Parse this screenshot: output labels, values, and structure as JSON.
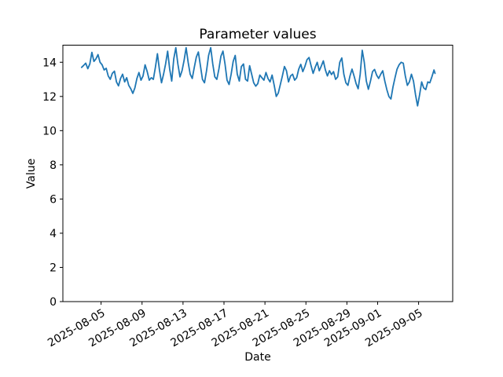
{
  "chart_data": {
    "type": "line",
    "title": "Parameter values",
    "xlabel": "Date",
    "ylabel": "Value",
    "legend": null,
    "grid": false,
    "background": "#ffffff",
    "line_color": "#1f77b4",
    "axis_color": "#000000",
    "x_unit": "days since 2025-08-03 00:00",
    "xlim_days": [
      -1.73,
      36.33
    ],
    "ylim": [
      0,
      15
    ],
    "yticks": [
      {
        "v": 0,
        "label": "0"
      },
      {
        "v": 2,
        "label": "2"
      },
      {
        "v": 4,
        "label": "4"
      },
      {
        "v": 6,
        "label": "6"
      },
      {
        "v": 8,
        "label": "8"
      },
      {
        "v": 10,
        "label": "10"
      },
      {
        "v": 12,
        "label": "12"
      },
      {
        "v": 14,
        "label": "14"
      }
    ],
    "xticks": [
      {
        "t": 2,
        "label": "2025-08-05"
      },
      {
        "t": 6,
        "label": "2025-08-09"
      },
      {
        "t": 10,
        "label": "2025-08-13"
      },
      {
        "t": 14,
        "label": "2025-08-17"
      },
      {
        "t": 18,
        "label": "2025-08-21"
      },
      {
        "t": 22,
        "label": "2025-08-25"
      },
      {
        "t": 26,
        "label": "2025-08-29"
      },
      {
        "t": 29,
        "label": "2025-09-01"
      },
      {
        "t": 33,
        "label": "2025-09-05"
      }
    ],
    "points": [
      [
        0.1,
        13.7
      ],
      [
        0.3,
        13.82
      ],
      [
        0.5,
        13.95
      ],
      [
        0.7,
        13.62
      ],
      [
        0.9,
        13.9
      ],
      [
        1.1,
        14.58
      ],
      [
        1.3,
        14.05
      ],
      [
        1.5,
        14.2
      ],
      [
        1.7,
        14.45
      ],
      [
        1.9,
        14.0
      ],
      [
        2.1,
        13.85
      ],
      [
        2.3,
        13.55
      ],
      [
        2.5,
        13.65
      ],
      [
        2.7,
        13.2
      ],
      [
        2.9,
        13.0
      ],
      [
        3.1,
        13.35
      ],
      [
        3.3,
        13.48
      ],
      [
        3.5,
        12.85
      ],
      [
        3.7,
        12.62
      ],
      [
        3.9,
        13.05
      ],
      [
        4.1,
        13.3
      ],
      [
        4.3,
        12.85
      ],
      [
        4.5,
        13.1
      ],
      [
        4.7,
        12.65
      ],
      [
        4.9,
        12.45
      ],
      [
        5.1,
        12.18
      ],
      [
        5.3,
        12.5
      ],
      [
        5.5,
        13.05
      ],
      [
        5.7,
        13.4
      ],
      [
        5.9,
        12.95
      ],
      [
        6.1,
        13.2
      ],
      [
        6.3,
        13.85
      ],
      [
        6.5,
        13.45
      ],
      [
        6.7,
        12.95
      ],
      [
        6.9,
        13.1
      ],
      [
        7.1,
        13.0
      ],
      [
        7.3,
        13.7
      ],
      [
        7.5,
        14.5
      ],
      [
        7.7,
        13.55
      ],
      [
        7.9,
        12.8
      ],
      [
        8.1,
        13.3
      ],
      [
        8.3,
        13.9
      ],
      [
        8.5,
        14.65
      ],
      [
        8.7,
        13.6
      ],
      [
        8.9,
        12.9
      ],
      [
        9.1,
        14.2
      ],
      [
        9.3,
        14.85
      ],
      [
        9.5,
        13.9
      ],
      [
        9.7,
        13.15
      ],
      [
        9.9,
        13.5
      ],
      [
        10.1,
        14.1
      ],
      [
        10.3,
        14.85
      ],
      [
        10.5,
        14.0
      ],
      [
        10.7,
        13.3
      ],
      [
        10.9,
        13.05
      ],
      [
        11.1,
        13.7
      ],
      [
        11.3,
        14.3
      ],
      [
        11.5,
        14.6
      ],
      [
        11.7,
        13.8
      ],
      [
        11.9,
        13.0
      ],
      [
        12.1,
        12.8
      ],
      [
        12.3,
        13.5
      ],
      [
        12.5,
        14.4
      ],
      [
        12.7,
        14.85
      ],
      [
        12.9,
        13.9
      ],
      [
        13.1,
        13.15
      ],
      [
        13.3,
        13.0
      ],
      [
        13.5,
        13.6
      ],
      [
        13.7,
        14.35
      ],
      [
        13.9,
        14.65
      ],
      [
        14.1,
        13.9
      ],
      [
        14.3,
        12.95
      ],
      [
        14.5,
        12.7
      ],
      [
        14.7,
        13.3
      ],
      [
        14.9,
        14.05
      ],
      [
        15.1,
        14.4
      ],
      [
        15.3,
        13.3
      ],
      [
        15.5,
        12.9
      ],
      [
        15.7,
        13.75
      ],
      [
        15.9,
        13.9
      ],
      [
        16.1,
        13.0
      ],
      [
        16.3,
        12.9
      ],
      [
        16.5,
        13.8
      ],
      [
        16.7,
        13.3
      ],
      [
        16.9,
        12.8
      ],
      [
        17.1,
        12.6
      ],
      [
        17.3,
        12.75
      ],
      [
        17.5,
        13.25
      ],
      [
        17.7,
        13.1
      ],
      [
        17.9,
        12.95
      ],
      [
        18.1,
        13.4
      ],
      [
        18.3,
        13.05
      ],
      [
        18.5,
        12.85
      ],
      [
        18.7,
        13.25
      ],
      [
        18.9,
        12.65
      ],
      [
        19.1,
        12.0
      ],
      [
        19.3,
        12.2
      ],
      [
        19.5,
        12.7
      ],
      [
        19.7,
        13.2
      ],
      [
        19.9,
        13.75
      ],
      [
        20.1,
        13.5
      ],
      [
        20.3,
        12.85
      ],
      [
        20.5,
        13.2
      ],
      [
        20.7,
        13.3
      ],
      [
        20.9,
        12.95
      ],
      [
        21.1,
        13.1
      ],
      [
        21.3,
        13.6
      ],
      [
        21.5,
        13.88
      ],
      [
        21.7,
        13.45
      ],
      [
        21.9,
        13.75
      ],
      [
        22.1,
        14.15
      ],
      [
        22.3,
        14.28
      ],
      [
        22.5,
        13.8
      ],
      [
        22.7,
        13.35
      ],
      [
        22.9,
        13.7
      ],
      [
        23.1,
        14.0
      ],
      [
        23.3,
        13.5
      ],
      [
        23.5,
        13.78
      ],
      [
        23.7,
        14.08
      ],
      [
        23.9,
        13.55
      ],
      [
        24.1,
        13.2
      ],
      [
        24.3,
        13.5
      ],
      [
        24.5,
        13.28
      ],
      [
        24.7,
        13.45
      ],
      [
        24.9,
        13.0
      ],
      [
        25.1,
        13.15
      ],
      [
        25.3,
        14.0
      ],
      [
        25.5,
        14.25
      ],
      [
        25.7,
        13.3
      ],
      [
        25.9,
        12.8
      ],
      [
        26.1,
        12.65
      ],
      [
        26.3,
        13.2
      ],
      [
        26.5,
        13.6
      ],
      [
        26.7,
        13.2
      ],
      [
        26.9,
        12.75
      ],
      [
        27.1,
        12.45
      ],
      [
        27.3,
        13.3
      ],
      [
        27.5,
        14.7
      ],
      [
        27.7,
        14.0
      ],
      [
        27.9,
        12.9
      ],
      [
        28.1,
        12.42
      ],
      [
        28.3,
        12.9
      ],
      [
        28.5,
        13.45
      ],
      [
        28.7,
        13.58
      ],
      [
        28.9,
        13.25
      ],
      [
        29.1,
        13.05
      ],
      [
        29.3,
        13.3
      ],
      [
        29.5,
        13.5
      ],
      [
        29.7,
        12.9
      ],
      [
        29.9,
        12.4
      ],
      [
        30.1,
        12.0
      ],
      [
        30.3,
        11.85
      ],
      [
        30.5,
        12.55
      ],
      [
        30.7,
        13.1
      ],
      [
        30.9,
        13.6
      ],
      [
        31.1,
        13.85
      ],
      [
        31.3,
        14.0
      ],
      [
        31.5,
        13.95
      ],
      [
        31.7,
        13.2
      ],
      [
        31.9,
        12.65
      ],
      [
        32.1,
        12.85
      ],
      [
        32.3,
        13.3
      ],
      [
        32.5,
        12.9
      ],
      [
        32.7,
        12.1
      ],
      [
        32.9,
        11.45
      ],
      [
        33.1,
        12.1
      ],
      [
        33.3,
        12.85
      ],
      [
        33.5,
        12.5
      ],
      [
        33.7,
        12.4
      ],
      [
        33.9,
        12.85
      ],
      [
        34.1,
        12.8
      ],
      [
        34.3,
        13.15
      ],
      [
        34.5,
        13.55
      ],
      [
        34.6,
        13.35
      ]
    ]
  }
}
